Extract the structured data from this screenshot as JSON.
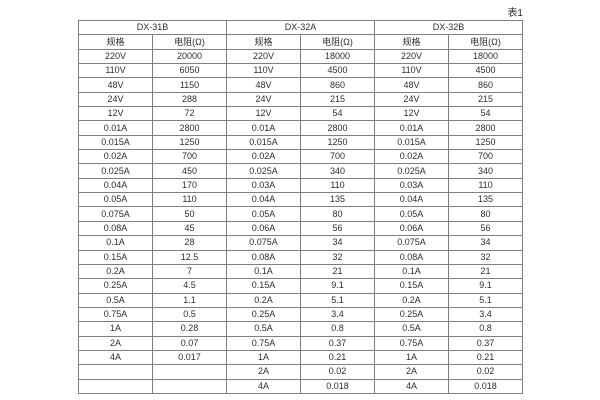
{
  "caption": "表1",
  "colors": {
    "border": "#7f7f7f",
    "text": "#2e2e2e",
    "background": "#ffffff"
  },
  "table": {
    "groups": [
      {
        "name": "DX-31B",
        "spec_header": "规格",
        "res_header": "电阻(Ω)"
      },
      {
        "name": "DX-32A",
        "spec_header": "规格",
        "res_header": "电阻(Ω)"
      },
      {
        "name": "DX-32B",
        "spec_header": "规格",
        "res_header": "电阻(Ω)"
      }
    ],
    "rows": [
      [
        "220V",
        "20000",
        "220V",
        "18000",
        "220V",
        "18000"
      ],
      [
        "110V",
        "6050",
        "110V",
        "4500",
        "110V",
        "4500"
      ],
      [
        "48V",
        "1150",
        "48V",
        "860",
        "48V",
        "860"
      ],
      [
        "24V",
        "288",
        "24V",
        "215",
        "24V",
        "215"
      ],
      [
        "12V",
        "72",
        "12V",
        "54",
        "12V",
        "54"
      ],
      [
        "0.01A",
        "2800",
        "0.01A",
        "2800",
        "0.01A",
        "2800"
      ],
      [
        "0.015A",
        "1250",
        "0.015A",
        "1250",
        "0.015A",
        "1250"
      ],
      [
        "0.02A",
        "700",
        "0.02A",
        "700",
        "0.02A",
        "700"
      ],
      [
        "0.025A",
        "450",
        "0.025A",
        "340",
        "0.025A",
        "340"
      ],
      [
        "0.04A",
        "170",
        "0.03A",
        "110",
        "0.03A",
        "110"
      ],
      [
        "0.05A",
        "110",
        "0.04A",
        "135",
        "0.04A",
        "135"
      ],
      [
        "0.075A",
        "50",
        "0.05A",
        "80",
        "0.05A",
        "80"
      ],
      [
        "0.08A",
        "45",
        "0.06A",
        "56",
        "0.06A",
        "56"
      ],
      [
        "0.1A",
        "28",
        "0.075A",
        "34",
        "0.075A",
        "34"
      ],
      [
        "0.15A",
        "12.5",
        "0.08A",
        "32",
        "0.08A",
        "32"
      ],
      [
        "0.2A",
        "7",
        "0.1A",
        "21",
        "0.1A",
        "21"
      ],
      [
        "0.25A",
        "4.5",
        "0.15A",
        "9.1",
        "0.15A",
        "9.1"
      ],
      [
        "0.5A",
        "1.1",
        "0.2A",
        "5.1",
        "0.2A",
        "5.1"
      ],
      [
        "0.75A",
        "0.5",
        "0.25A",
        "3.4",
        "0.25A",
        "3.4"
      ],
      [
        "1A",
        "0.28",
        "0.5A",
        "0.8",
        "0.5A",
        "0.8"
      ],
      [
        "2A",
        "0.07",
        "0.75A",
        "0.37",
        "0.75A",
        "0.37"
      ],
      [
        "4A",
        "0.017",
        "1A",
        "0.21",
        "1A",
        "0.21"
      ],
      [
        "",
        "",
        "2A",
        "0.02",
        "2A",
        "0.02"
      ],
      [
        "",
        "",
        "4A",
        "0.018",
        "4A",
        "0.018"
      ]
    ]
  }
}
